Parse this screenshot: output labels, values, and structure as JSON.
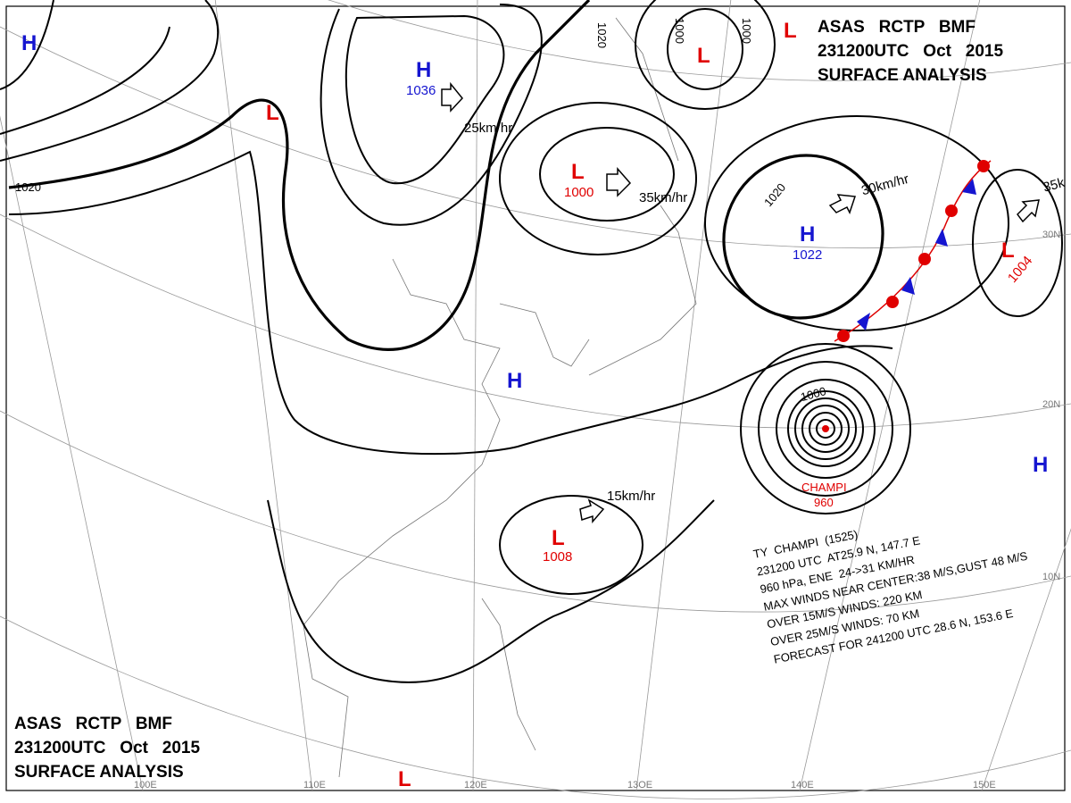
{
  "header": {
    "lines": [
      "ASAS   RCTP   BMF",
      "231200UTC   Oct   2015",
      "SURFACE ANALYSIS"
    ]
  },
  "pressure_centers": [
    {
      "label": "H"
    },
    {
      "label": "H",
      "value": "1036"
    },
    {
      "label": "L"
    },
    {
      "label": "L",
      "value": "1000"
    },
    {
      "label": "L"
    },
    {
      "label": "L"
    },
    {
      "label": "H",
      "value": "1022"
    },
    {
      "label": "L",
      "value": "1004"
    },
    {
      "label": "H"
    },
    {
      "label": "L",
      "value": "1008"
    },
    {
      "label": "H"
    },
    {
      "label": "L"
    }
  ],
  "isobar_labels": [
    "1020",
    "1020",
    "1000",
    "1000",
    "1020",
    "1000"
  ],
  "motion_labels": [
    "25km/hr",
    "35km/hr",
    "30km/hr",
    "35k",
    "15km/hr"
  ],
  "latitude_labels": [
    "30N",
    "20N",
    "10N"
  ],
  "longitude_labels": [
    "100E",
    "110E",
    "120E",
    "13OE",
    "140E",
    "150E"
  ],
  "typhoon": {
    "name": "CHAMPI",
    "pressure": "960",
    "info": [
      "TY  CHAMPI  (1525)",
      "231200 UTC  AT25.9 N, 147.7 E",
      "960 hPa, ENE  24->31 KM/HR",
      "MAX WINDS NEAR CENTER:38 M/S,GUST 48 M/S",
      "OVER 15M/S WINDS: 220 KM",
      "OVER 25M/S WINDS: 70 KM",
      "FORECAST FOR 241200 UTC 28.6 N, 153.6 E"
    ]
  }
}
